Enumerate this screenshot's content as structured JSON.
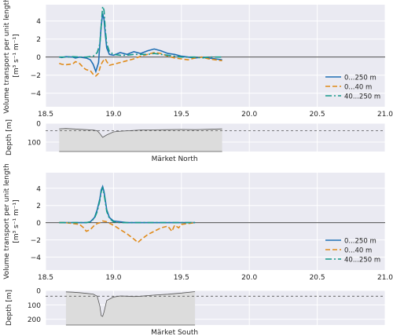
{
  "chart_data": [
    {
      "type": "line",
      "ylabel_line1": "Volume transport per unit length",
      "ylabel_unit": "[m³ s⁻¹ m⁻¹]",
      "xlim": [
        18.5,
        21.0
      ],
      "ylim": [
        -5.5,
        5.8
      ],
      "xticks": [
        18.5,
        19.0,
        19.5,
        20.0,
        20.5,
        21.0
      ],
      "xtick_labels": [
        "18.5",
        "19.0",
        "19.5",
        "20.0",
        "20.5",
        "21.0"
      ],
      "yticks": [
        -4,
        -2,
        0,
        2,
        4
      ],
      "ytick_labels": [
        "−4",
        "−2",
        "0",
        "2",
        "4"
      ],
      "legend_position": "lower-right",
      "series": [
        {
          "name": "0...250 m",
          "color": "#1f6fb4",
          "style": "solid",
          "x": [
            18.6,
            18.62,
            18.65,
            18.7,
            18.72,
            18.75,
            18.8,
            18.83,
            18.85,
            18.87,
            18.89,
            18.9,
            18.91,
            18.92,
            18.93,
            18.94,
            18.95,
            18.97,
            19.0,
            19.05,
            19.1,
            19.15,
            19.2,
            19.25,
            19.3,
            19.35,
            19.4,
            19.45,
            19.5,
            19.55,
            19.6,
            19.65,
            19.7,
            19.75,
            19.8
          ],
          "y": [
            0,
            -0.05,
            0.05,
            0,
            -0.1,
            0,
            -0.1,
            -0.3,
            -0.8,
            -1.6,
            -0.6,
            1.5,
            3.5,
            4.8,
            4.2,
            2.5,
            1.0,
            0.3,
            0.2,
            0.5,
            0.3,
            0.6,
            0.4,
            0.7,
            0.9,
            0.7,
            0.4,
            0.3,
            0.1,
            0.0,
            -0.1,
            0.0,
            -0.1,
            -0.2,
            -0.3
          ]
        },
        {
          "name": "0...40 m",
          "color": "#e08a18",
          "style": "dashed",
          "x": [
            18.6,
            18.62,
            18.65,
            18.7,
            18.72,
            18.75,
            18.78,
            18.8,
            18.83,
            18.85,
            18.87,
            18.89,
            18.9,
            18.91,
            18.92,
            18.93,
            18.94,
            18.95,
            18.97,
            19.0,
            19.05,
            19.1,
            19.15,
            19.2,
            19.25,
            19.3,
            19.35,
            19.4,
            19.45,
            19.5,
            19.55,
            19.6,
            19.65,
            19.7,
            19.75,
            19.8
          ],
          "y": [
            -0.7,
            -0.8,
            -0.85,
            -0.75,
            -0.5,
            -0.7,
            -1.2,
            -1.4,
            -1.5,
            -1.9,
            -2.1,
            -1.8,
            -1.2,
            -0.8,
            -0.5,
            -0.3,
            -0.2,
            -0.5,
            -0.9,
            -0.8,
            -0.6,
            -0.4,
            -0.2,
            0.1,
            0.3,
            0.5,
            0.4,
            0.1,
            -0.1,
            -0.2,
            -0.3,
            -0.1,
            0.0,
            -0.2,
            -0.3,
            -0.4
          ]
        },
        {
          "name": "40...250 m",
          "color": "#14998a",
          "style": "dashdot",
          "x": [
            18.6,
            18.65,
            18.7,
            18.75,
            18.8,
            18.85,
            18.88,
            18.9,
            18.91,
            18.92,
            18.93,
            18.94,
            18.95,
            18.97,
            19.0,
            19.05,
            19.1,
            19.15,
            19.2,
            19.25,
            19.3,
            19.35,
            19.4,
            19.45,
            19.5,
            19.55,
            19.6,
            19.65,
            19.7,
            19.75,
            19.8
          ],
          "y": [
            0.0,
            0.0,
            0.05,
            0.0,
            0.0,
            0.1,
            0.5,
            1.5,
            3.5,
            5.6,
            5.2,
            3.0,
            1.5,
            0.6,
            0.3,
            0.2,
            0.2,
            0.3,
            0.3,
            0.3,
            0.4,
            0.3,
            0.2,
            0.1,
            0.0,
            0.0,
            0.0,
            -0.1,
            0.0,
            0.0,
            0.0
          ]
        }
      ],
      "hline": 0
    },
    {
      "type": "area",
      "ylabel": "Depth [m]",
      "xlim": [
        18.5,
        21.0
      ],
      "ylim": [
        150,
        0
      ],
      "yticks": [
        0,
        100
      ],
      "ytick_labels": [
        "0",
        "100"
      ],
      "section_label": "Märket North",
      "dashed_ref_depth": 40,
      "x": [
        18.6,
        18.65,
        18.7,
        18.75,
        18.8,
        18.85,
        18.88,
        18.9,
        18.92,
        18.95,
        19.0,
        19.05,
        19.1,
        19.2,
        19.3,
        19.4,
        19.5,
        19.6,
        19.7,
        19.8
      ],
      "y": [
        30,
        28,
        30,
        32,
        34,
        36,
        40,
        55,
        75,
        62,
        46,
        42,
        40,
        36,
        35,
        34,
        33,
        34,
        32,
        30
      ]
    },
    {
      "type": "line",
      "ylabel_line1": "Volume transport per unit length",
      "ylabel_unit": "[m³ s⁻¹ m⁻¹]",
      "xlim": [
        18.5,
        21.0
      ],
      "ylim": [
        -5.5,
        5.8
      ],
      "xticks": [
        18.5,
        19.0,
        19.5,
        20.0,
        20.5,
        21.0
      ],
      "xtick_labels": [
        "18.5",
        "19.0",
        "19.5",
        "20.0",
        "20.5",
        "21.0"
      ],
      "yticks": [
        -4,
        -2,
        0,
        2,
        4
      ],
      "ytick_labels": [
        "−4",
        "−2",
        "0",
        "2",
        "4"
      ],
      "legend_position": "lower-right",
      "series": [
        {
          "name": "0...250 m",
          "color": "#1f6fb4",
          "style": "solid",
          "x": [
            18.6,
            18.65,
            18.7,
            18.75,
            18.8,
            18.83,
            18.86,
            18.88,
            18.9,
            18.91,
            18.92,
            18.93,
            18.94,
            18.95,
            18.97,
            19.0,
            19.05,
            19.1,
            19.15,
            19.2,
            19.25,
            19.3,
            19.35,
            19.4,
            19.45,
            19.5,
            19.55,
            19.6
          ],
          "y": [
            0,
            0,
            0,
            0,
            0,
            0.1,
            0.6,
            1.5,
            2.8,
            3.8,
            4.2,
            3.6,
            2.6,
            1.5,
            0.6,
            0.2,
            0.1,
            0.0,
            0.0,
            0.0,
            0.0,
            0.0,
            0.0,
            0.0,
            0.0,
            0.0,
            0.0,
            0.0
          ]
        },
        {
          "name": "0...40 m",
          "color": "#e08a18",
          "style": "dashed",
          "x": [
            18.6,
            18.65,
            18.7,
            18.75,
            18.78,
            18.8,
            18.83,
            18.86,
            18.88,
            18.9,
            18.92,
            18.95,
            19.0,
            19.05,
            19.1,
            19.15,
            19.18,
            19.2,
            19.25,
            19.3,
            19.35,
            19.4,
            19.43,
            19.45,
            19.48,
            19.5,
            19.55,
            19.6
          ],
          "y": [
            0,
            0,
            -0.1,
            -0.2,
            -0.6,
            -1.0,
            -0.8,
            -0.3,
            -0.1,
            0.0,
            0.2,
            0.1,
            -0.3,
            -0.8,
            -1.3,
            -1.9,
            -2.3,
            -2.0,
            -1.4,
            -1.0,
            -0.6,
            -0.4,
            -1.0,
            -0.3,
            -0.6,
            -0.2,
            -0.1,
            0.0
          ]
        },
        {
          "name": "40...250 m",
          "color": "#14998a",
          "style": "dashdot",
          "x": [
            18.6,
            18.65,
            18.7,
            18.75,
            18.8,
            18.83,
            18.86,
            18.88,
            18.9,
            18.91,
            18.92,
            18.93,
            18.94,
            18.95,
            18.97,
            19.0,
            19.05,
            19.1,
            19.15,
            19.2,
            19.25,
            19.3,
            19.35,
            19.4,
            19.45,
            19.5,
            19.55,
            19.6
          ],
          "y": [
            0,
            0,
            0,
            0,
            0,
            0.1,
            0.5,
            1.3,
            2.6,
            3.6,
            4.0,
            3.4,
            2.4,
            1.3,
            0.5,
            0.1,
            0.0,
            0.0,
            0.0,
            0.0,
            0.0,
            0.0,
            0.0,
            0.0,
            0.0,
            0.0,
            0.0,
            0.0
          ]
        }
      ],
      "hline": 0
    },
    {
      "type": "area",
      "ylabel": "Depth [m]",
      "xlim": [
        18.5,
        21.0
      ],
      "ylim": [
        240,
        0
      ],
      "yticks": [
        0,
        100,
        200
      ],
      "ytick_labels": [
        "0",
        "100",
        "200"
      ],
      "section_label": "Märket South",
      "dashed_ref_depth": 40,
      "x": [
        18.65,
        18.7,
        18.75,
        18.8,
        18.85,
        18.88,
        18.9,
        18.91,
        18.92,
        18.93,
        18.95,
        19.0,
        19.05,
        19.1,
        19.15,
        19.2,
        19.3,
        19.4,
        19.5,
        19.6
      ],
      "y": [
        10,
        12,
        15,
        20,
        25,
        40,
        110,
        175,
        180,
        150,
        70,
        45,
        38,
        40,
        42,
        40,
        32,
        26,
        18,
        8
      ]
    }
  ]
}
